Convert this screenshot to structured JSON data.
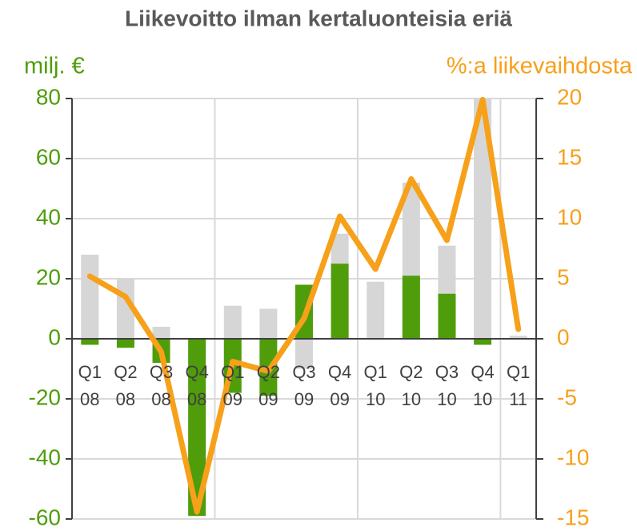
{
  "chart_data": {
    "type": "combo",
    "title": "Liikevoitto ilman kertaluonteisia eriä",
    "y_label": "milj. €",
    "y2_label": "%:a liikevaihdosta",
    "categories": [
      "Q1 08",
      "Q2 08",
      "Q3 08",
      "Q4 08",
      "Q1 09",
      "Q2 09",
      "Q3 09",
      "Q4 09",
      "Q1 10",
      "Q2 10",
      "Q3 10",
      "Q4 10",
      "Q1 11"
    ],
    "series": [
      {
        "type": "bar",
        "color": "#d6d6d6",
        "values": [
          28,
          20,
          4,
          -57,
          11,
          10,
          -10,
          35,
          19,
          52,
          31,
          80,
          1
        ]
      },
      {
        "type": "bar",
        "color": "#4f9d0a",
        "values": [
          -2,
          -3,
          -8,
          -59,
          -18,
          -19,
          18,
          25,
          0,
          21,
          15,
          -2,
          0
        ]
      },
      {
        "type": "line",
        "axis": "y2",
        "color": "#f7a01a",
        "values": [
          5.2,
          3.5,
          -1.1,
          -14.4,
          -1.9,
          -2.7,
          1.7,
          10.2,
          5.8,
          13.3,
          8.2,
          19.9,
          0.8
        ]
      }
    ],
    "ylim": [
      -60,
      80
    ],
    "yticks": [
      -60,
      -40,
      -20,
      0,
      20,
      40,
      60,
      80
    ],
    "y2lim": [
      -15,
      20
    ],
    "y2ticks": [
      -15,
      -10,
      -5,
      0,
      5,
      10,
      15,
      20
    ],
    "y_color": "#4f9d0a",
    "y2_color": "#f7a01a",
    "grid": true
  }
}
